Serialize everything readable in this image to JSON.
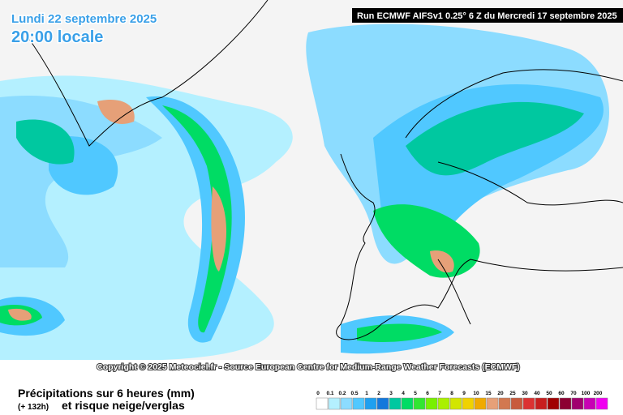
{
  "header": {
    "date": "Lundi 22 septembre 2025",
    "time": "20:00 locale",
    "run": "Run ECMWF AIFSv1 0.25° 6 Z du Mercredi 17 septembre 2025"
  },
  "copyright": "Copyright © 2025 Meteociel.fr - Source European Centre for Medium-Range Weather Forecasts (ECMWF)",
  "footer": {
    "title": "Précipitations sur 6 heures (mm)",
    "lead": "(+ 132h)",
    "subtitle": "et risque neige/verglas"
  },
  "legend": {
    "labels": [
      0,
      0.1,
      0.2,
      0.5,
      1,
      2,
      3,
      4,
      5,
      6,
      7,
      8,
      9,
      10,
      15,
      20,
      25,
      30,
      40,
      50,
      60,
      70,
      100,
      200
    ],
    "colors": [
      "#ffffff",
      "#b4f0ff",
      "#8cdcff",
      "#50c8ff",
      "#1ea0f0",
      "#1478dc",
      "#00c8a0",
      "#00dc64",
      "#32e632",
      "#78f000",
      "#aaf000",
      "#d2e600",
      "#f0d200",
      "#f0aa00",
      "#e6a078",
      "#d27850",
      "#c85a3c",
      "#dc3232",
      "#c81e1e",
      "#a00000",
      "#8c0032",
      "#a0006e",
      "#c800b4",
      "#f000f0"
    ]
  }
}
